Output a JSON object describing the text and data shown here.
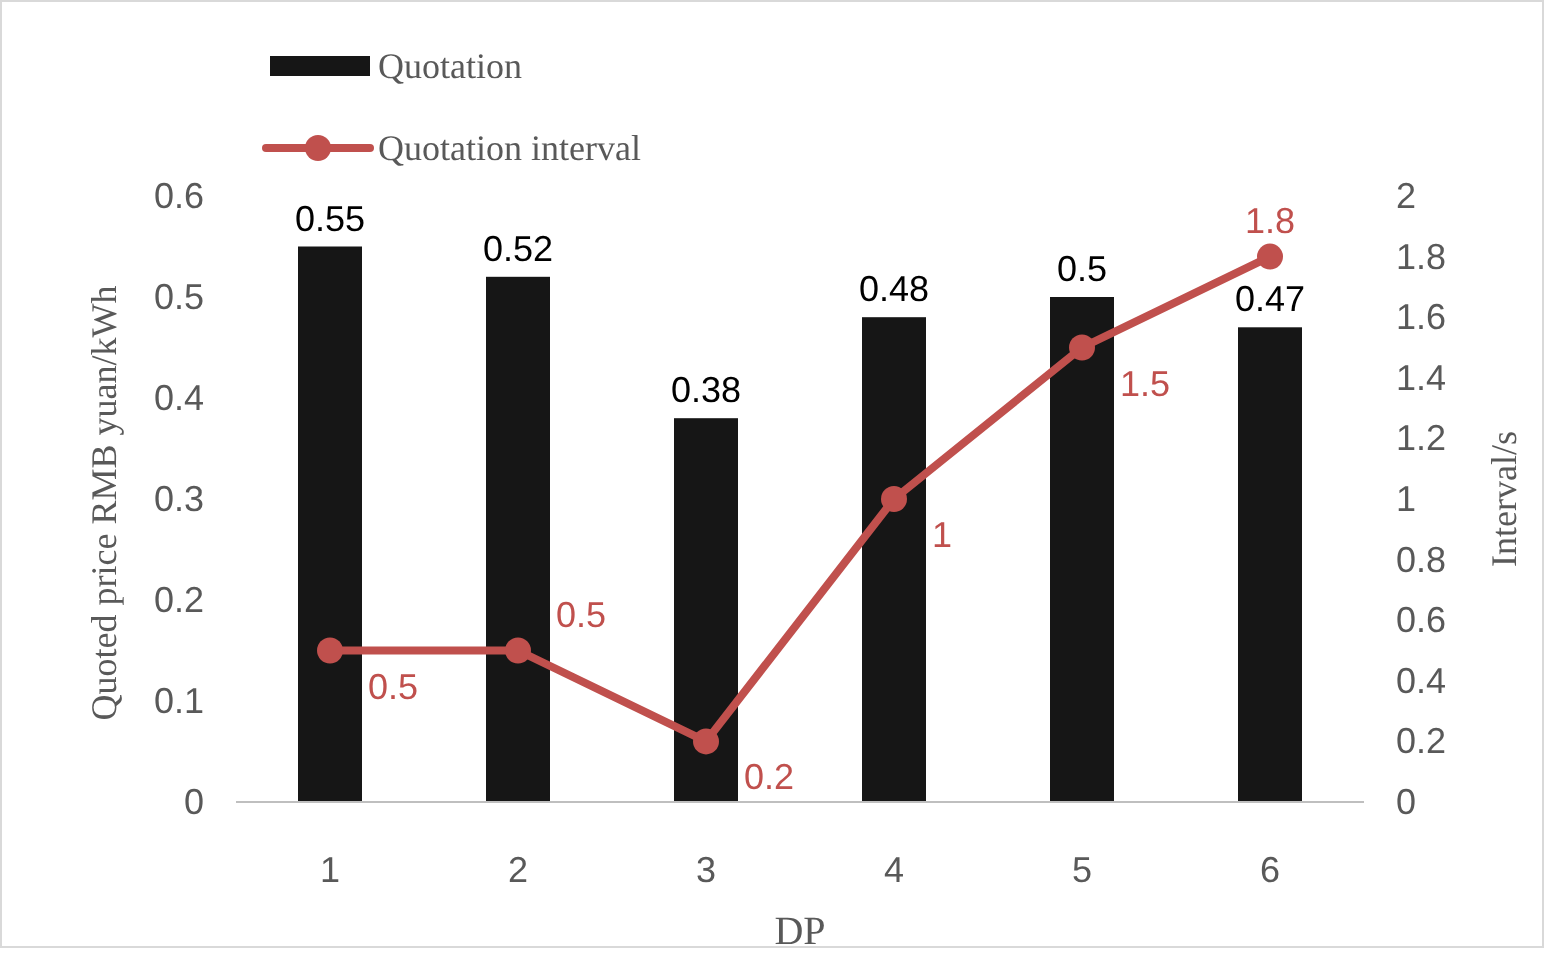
{
  "chart_data": {
    "type": "bar",
    "xlabel": "DP",
    "ylabel": "Quoted price RMB yuan/kWh",
    "y2label": "Interval/s",
    "categories": [
      "1",
      "2",
      "3",
      "4",
      "5",
      "6"
    ],
    "series": [
      {
        "name": "Quotation",
        "color": "#161616",
        "values": [
          0.55,
          0.52,
          0.38,
          0.48,
          0.5,
          0.47
        ]
      },
      {
        "name": "Quotation interval",
        "type": "line",
        "axis": "y2",
        "color": "#c0504d",
        "values": [
          0.5,
          0.5,
          0.2,
          1,
          1.5,
          1.8
        ]
      }
    ],
    "ylim": [
      0,
      0.6
    ],
    "yticks": [
      0,
      0.1,
      0.2,
      0.3,
      0.4,
      0.5,
      0.6
    ],
    "y2lim": [
      0,
      2
    ],
    "y2ticks": [
      0,
      0.2,
      0.4,
      0.6,
      0.8,
      1,
      1.2,
      1.4,
      1.6,
      1.8,
      2
    ],
    "data_labels": true,
    "grid": false,
    "legend": "top left",
    "marker": "circle",
    "line_style": "solid"
  }
}
